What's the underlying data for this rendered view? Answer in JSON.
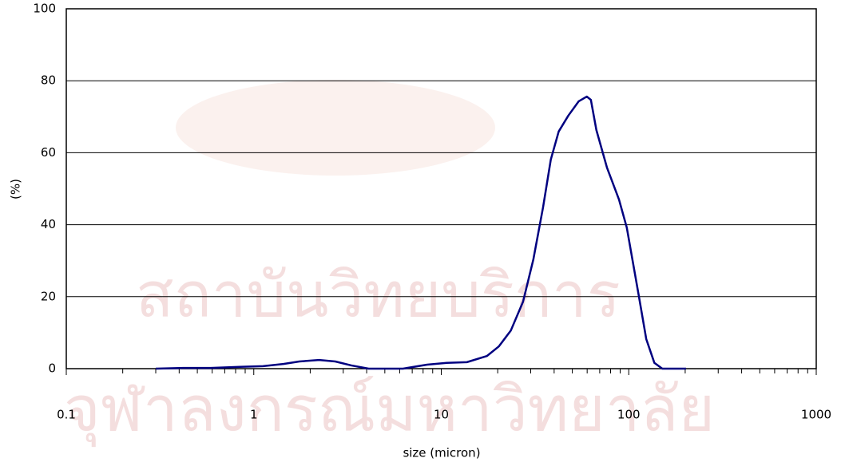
{
  "chart_data": {
    "type": "line",
    "xlabel": "size (micron)",
    "ylabel": "(%)",
    "watermark": [
      "สถาบันวิทยบริการ",
      "จุฬาลงกรณ์มหาวิทยาลัย"
    ],
    "xscale": "log",
    "xlim": [
      0.1,
      1000
    ],
    "ylim": [
      0,
      100
    ],
    "xticks": [
      0.1,
      1,
      10,
      100,
      1000
    ],
    "xminorticks": [
      0.2,
      0.3,
      0.4,
      0.5,
      0.6,
      0.7,
      0.8,
      0.9,
      2,
      3,
      4,
      5,
      6,
      7,
      8,
      9,
      20,
      30,
      40,
      50,
      60,
      70,
      80,
      90,
      200,
      300,
      400,
      500,
      600,
      700,
      800,
      900
    ],
    "yticks": [
      0,
      20,
      40,
      60,
      80,
      100
    ],
    "grid": true,
    "series": [
      {
        "color": "#000080",
        "x": [
          0.3,
          0.42,
          0.59,
          0.84,
          1.12,
          1.44,
          1.75,
          2.23,
          2.72,
          3.31,
          4.1,
          6.25,
          8.4,
          10.7,
          13.7,
          17.5,
          20.3,
          23.5,
          27.3,
          31,
          34.9,
          38.4,
          42.3,
          47.6,
          54.1,
          59.7,
          62.8,
          67.2,
          76.5,
          88.7,
          97.6,
          113,
          124,
          137,
          151,
          202
        ],
        "values": [
          0,
          0.2,
          0.2,
          0.5,
          0.7,
          1.3,
          2.0,
          2.4,
          2.0,
          0.9,
          0,
          0,
          1.1,
          1.6,
          1.8,
          3.5,
          6.2,
          10.6,
          18.6,
          30.4,
          44.8,
          58.1,
          65.9,
          70.3,
          74.3,
          75.6,
          74.7,
          66.3,
          55.9,
          47.0,
          39.2,
          20.4,
          8.2,
          1.6,
          0,
          0
        ]
      }
    ]
  }
}
